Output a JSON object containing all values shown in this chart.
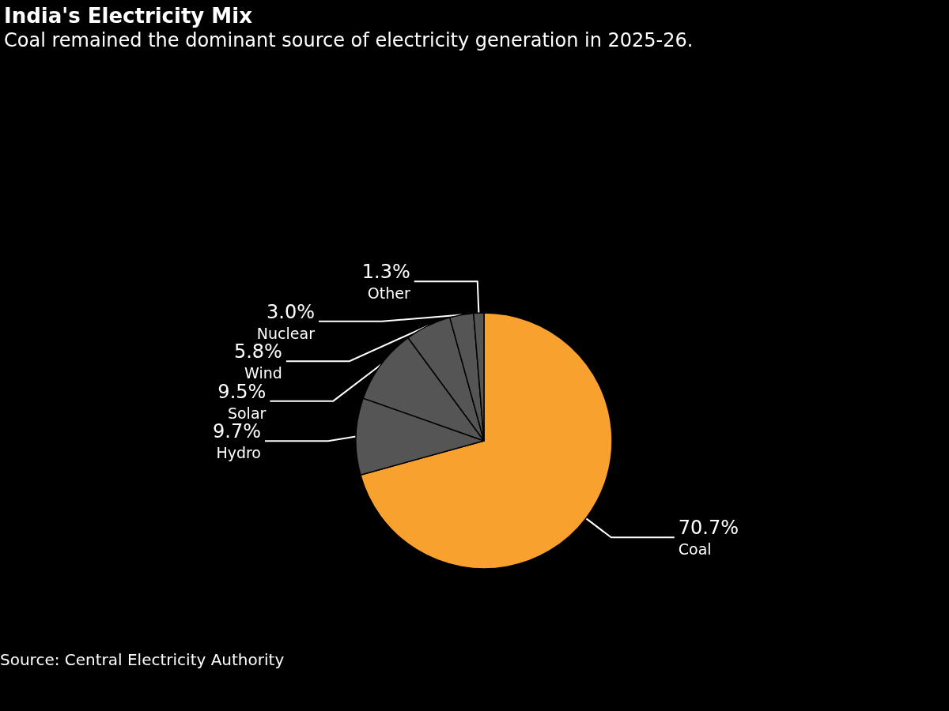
{
  "chart_data": {
    "type": "pie",
    "title": "India's Electricity Mix",
    "subtitle": "Coal remained the dominant source of electricity generation in 2025-26.",
    "categories": [
      "Coal",
      "Hydro",
      "Solar",
      "Wind",
      "Nuclear",
      "Other"
    ],
    "values": [
      70.7,
      9.7,
      9.5,
      5.8,
      3.0,
      1.3
    ],
    "value_labels": [
      "70.7%",
      "9.7%",
      "9.5%",
      "5.8%",
      "3.0%",
      "1.3%"
    ],
    "colors": [
      "#f9a12e",
      "#555555",
      "#555555",
      "#555555",
      "#555555",
      "#555555"
    ],
    "legend": false,
    "annotations": [
      "Source: Central Electricity Authority"
    ]
  }
}
